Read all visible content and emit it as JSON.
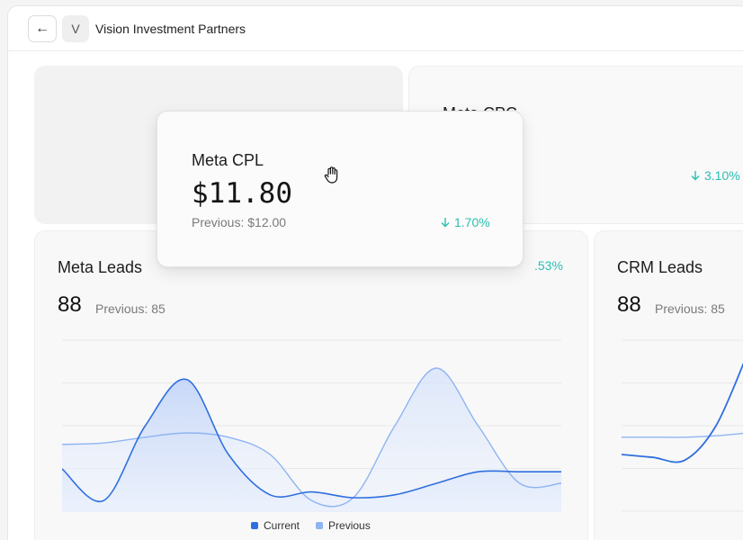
{
  "header": {
    "back_icon": "arrow-left-icon",
    "back_glyph": "←",
    "avatar_letter": "V",
    "org_name": "Vision Investment Partners"
  },
  "cards": {
    "cpc": {
      "title": "Meta CPC",
      "change": "3.10%",
      "change_icon": "arrow-down-icon"
    },
    "cpl": {
      "title": "Meta CPL",
      "value": "$11.80",
      "previous": "Previous: $12.00",
      "change": "1.70%",
      "change_icon": "arrow-down-icon"
    },
    "leads": {
      "title": "Meta Leads",
      "value": "88",
      "previous": "Previous: 85",
      "change_partial": ".53%"
    },
    "crm": {
      "title": "CRM Leads",
      "value": "88",
      "previous": "Previous: 85"
    }
  },
  "legend": {
    "current": "Current",
    "previous": "Previous"
  },
  "colors": {
    "accent_teal": "#2bbfb0",
    "current_line": "#2f6fe0",
    "previous_line": "#8fb4f3"
  },
  "chart_data": [
    {
      "type": "area",
      "title": "Meta Leads",
      "x": [
        0,
        1,
        2,
        3,
        4,
        5,
        6,
        7,
        8,
        9,
        10,
        11,
        12
      ],
      "series": [
        {
          "name": "Current",
          "values": [
            30,
            8,
            60,
            92,
            40,
            12,
            14,
            10,
            12,
            20,
            28,
            28,
            28
          ]
        },
        {
          "name": "Previous",
          "values": [
            47,
            48,
            52,
            55,
            52,
            40,
            8,
            10,
            60,
            100,
            60,
            20,
            20
          ]
        }
      ],
      "ylim": [
        0,
        120
      ],
      "grid": true,
      "legend": "bottom"
    },
    {
      "type": "line",
      "title": "CRM Leads",
      "x": [
        0,
        1,
        2,
        3,
        4
      ],
      "series": [
        {
          "name": "Current",
          "values": [
            40,
            38,
            36,
            60,
            110
          ]
        },
        {
          "name": "Previous",
          "values": [
            52,
            52,
            52,
            53,
            55
          ]
        }
      ],
      "ylim": [
        0,
        120
      ],
      "grid": true
    }
  ]
}
